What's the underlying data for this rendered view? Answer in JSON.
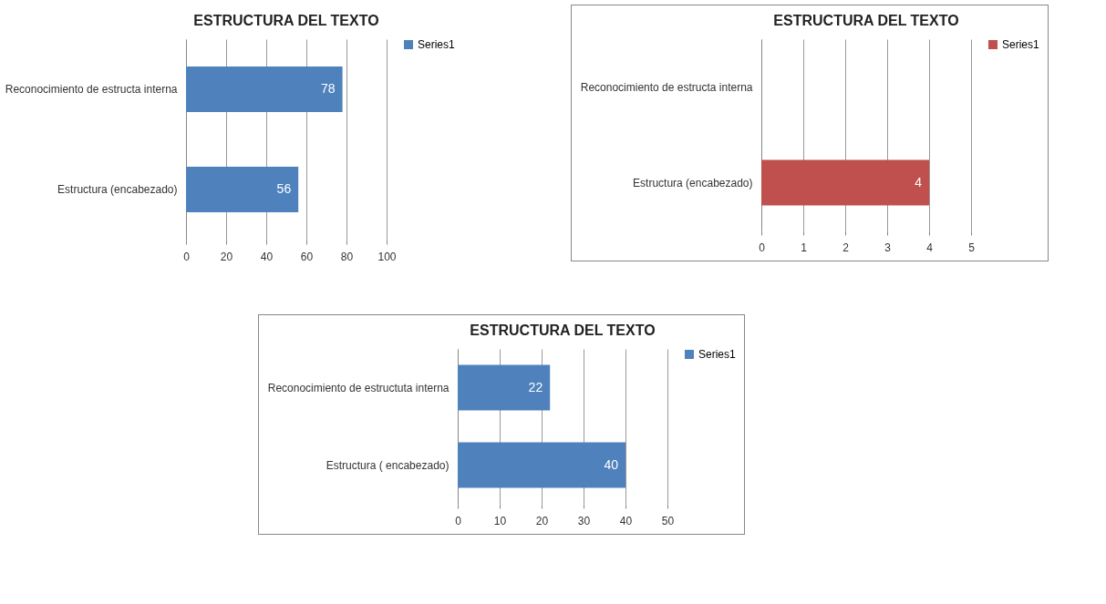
{
  "chart_data": [
    {
      "type": "bar",
      "orientation": "horizontal",
      "title": "ESTRUCTURA DEL TEXTO",
      "categories": [
        "Reconocimiento de estructa interna",
        "Estructura (encabezado)"
      ],
      "series": [
        {
          "name": "Series1",
          "color": "#4f81bd",
          "values": [
            78,
            56
          ]
        }
      ],
      "xlim": [
        0,
        100
      ],
      "xticks": [
        0,
        20,
        40,
        60,
        80,
        100
      ],
      "grid": "x",
      "legend": "right",
      "data_labels": true
    },
    {
      "type": "bar",
      "orientation": "horizontal",
      "title": "ESTRUCTURA DEL TEXTO",
      "categories": [
        "Reconocimiento de estructa interna",
        "Estructura (encabezado)"
      ],
      "series": [
        {
          "name": "Series1",
          "color": "#c0504d",
          "values": [
            0,
            4
          ]
        }
      ],
      "value_labels": [
        null,
        "4"
      ],
      "xlim": [
        0,
        5
      ],
      "xticks": [
        0,
        1,
        2,
        3,
        4,
        5
      ],
      "grid": "x",
      "legend": "right"
    },
    {
      "type": "bar",
      "orientation": "horizontal",
      "title": "ESTRUCTURA DEL TEXTO",
      "categories": [
        "Reconocimiento de estructuta interna",
        "Estructura ( encabezado)"
      ],
      "series": [
        {
          "name": "Series1",
          "color": "#4f81bd",
          "values": [
            22,
            40
          ]
        }
      ],
      "xlim": [
        0,
        50
      ],
      "xticks": [
        0,
        10,
        20,
        30,
        40,
        50
      ],
      "grid": "x",
      "legend": "right",
      "data_labels": true
    }
  ]
}
